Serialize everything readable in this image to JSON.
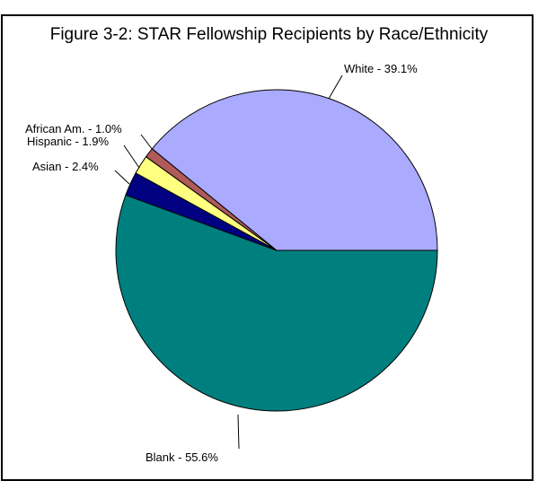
{
  "chart_data": {
    "type": "pie",
    "title": "Figure 3-2: STAR Fellowship Recipients by Race/Ethnicity",
    "slices": [
      {
        "label": "White",
        "label_text": "White - 39.1%",
        "value": 39.1,
        "color": "#aaaaff"
      },
      {
        "label": "Blank",
        "label_text": "Blank - 55.6%",
        "value": 55.6,
        "color": "#007f7f"
      },
      {
        "label": "Asian",
        "label_text": "Asian - 2.4%",
        "value": 2.4,
        "color": "#000080"
      },
      {
        "label": "Hispanic",
        "label_text": "Hispanic - 1.9%",
        "value": 1.9,
        "color": "#ffff80"
      },
      {
        "label": "African Am.",
        "label_text": "African Am. - 1.0%",
        "value": 1.0,
        "color": "#b05a5a"
      }
    ]
  }
}
